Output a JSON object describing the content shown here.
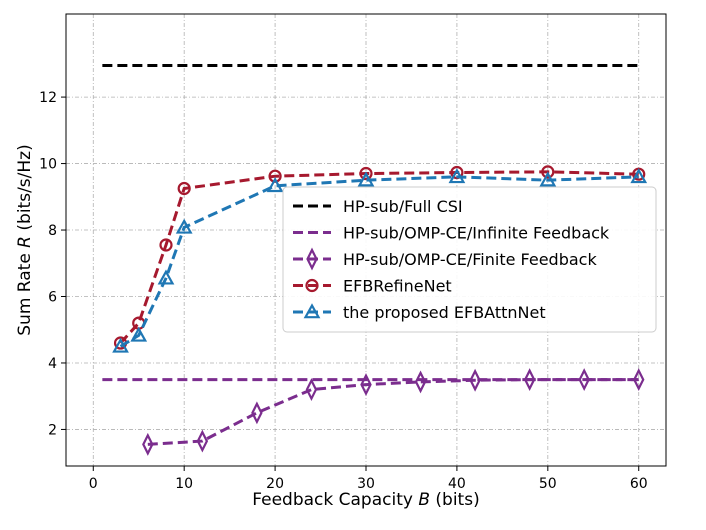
{
  "chart_data": {
    "type": "line",
    "title": "",
    "xlabel_prefix": "Feedback Capacity ",
    "xlabel_var": "B",
    "xlabel_suffix": " (bits)",
    "ylabel_prefix": "Sum Rate ",
    "ylabel_var": "R",
    "ylabel_suffix": " (bits/s/Hz)",
    "xlim": [
      -3,
      63
    ],
    "ylim": [
      0.9,
      14.5
    ],
    "xticks": [
      0,
      10,
      20,
      30,
      40,
      50,
      60
    ],
    "yticks": [
      2,
      4,
      6,
      8,
      10,
      12
    ],
    "grid": true,
    "legend_position": "center-right",
    "series": [
      {
        "name": "HP-sub/Full CSI",
        "color": "#000000",
        "marker": "none",
        "x": [
          1,
          60
        ],
        "y": [
          12.95,
          12.95
        ]
      },
      {
        "name": "HP-sub/OMP-CE/Infinite Feedback",
        "color": "#7b2d8e",
        "marker": "none",
        "x": [
          1,
          60
        ],
        "y": [
          3.5,
          3.5
        ]
      },
      {
        "name": "HP-sub/OMP-CE/Finite Feedback",
        "color": "#7b2d8e",
        "marker": "diamond",
        "x": [
          6,
          12,
          18,
          24,
          30,
          36,
          42,
          48,
          54,
          60
        ],
        "y": [
          1.55,
          1.65,
          2.5,
          3.2,
          3.35,
          3.43,
          3.48,
          3.5,
          3.5,
          3.5
        ]
      },
      {
        "name": "EFBRefineNet",
        "color": "#a6192e",
        "marker": "circle",
        "x": [
          3,
          5,
          8,
          10,
          20,
          30,
          40,
          50,
          60
        ],
        "y": [
          4.6,
          5.2,
          7.55,
          9.25,
          9.62,
          9.7,
          9.73,
          9.75,
          9.68
        ]
      },
      {
        "name": "the proposed EFBAttnNet",
        "color": "#1f77b4",
        "marker": "triangle",
        "x": [
          3,
          5,
          8,
          10,
          20,
          30,
          40,
          50,
          60
        ],
        "y": [
          4.5,
          4.83,
          6.55,
          8.08,
          9.33,
          9.5,
          9.6,
          9.5,
          9.6
        ]
      }
    ]
  }
}
